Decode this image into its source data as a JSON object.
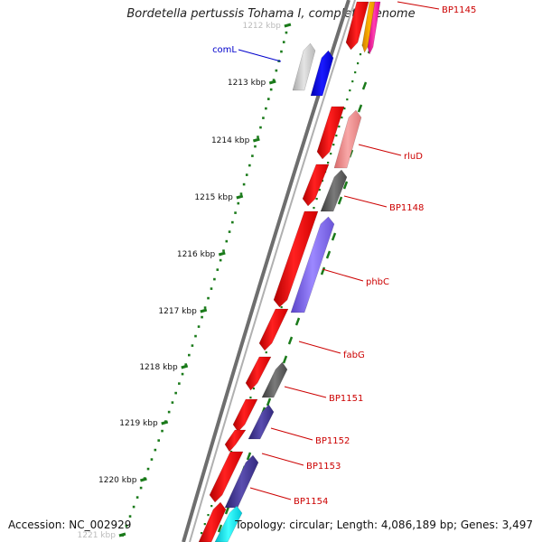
{
  "title": "Bordetella pertussis Tohama I, complete genome",
  "footer": {
    "accession_label": "Accession:",
    "accession": "NC_002929",
    "topology_label": "Topology:",
    "topology": "circular",
    "length_label": "Length:",
    "length": "4,086,189 bp",
    "genes_label": "Genes:",
    "genes": "3,497"
  },
  "ruler": {
    "color": "#1a7a1a",
    "ticks": [
      {
        "label": "1212 kbp",
        "faded": true
      },
      {
        "label": "1213 kbp"
      },
      {
        "label": "1214 kbp"
      },
      {
        "label": "1215 kbp"
      },
      {
        "label": "1216 kbp"
      },
      {
        "label": "1217 kbp"
      },
      {
        "label": "1218 kbp"
      },
      {
        "label": "1219 kbp"
      },
      {
        "label": "1220 kbp"
      },
      {
        "label": "1221 kbp",
        "faded": true
      }
    ]
  },
  "colors": {
    "backbone": "#7a7a7a",
    "forward_cds": "#ff0000",
    "label_red": "#cc0000",
    "label_blue": "#0000cc"
  },
  "gene_labels": [
    {
      "text": "comL",
      "color": "blue"
    },
    {
      "text": "BP1145",
      "color": "red"
    },
    {
      "text": "rluD",
      "color": "red"
    },
    {
      "text": "BP1148",
      "color": "red"
    },
    {
      "text": "phbC",
      "color": "red"
    },
    {
      "text": "fabG",
      "color": "red"
    },
    {
      "text": "BP1151",
      "color": "red"
    },
    {
      "text": "BP1152",
      "color": "red"
    },
    {
      "text": "BP1153",
      "color": "red"
    },
    {
      "text": "BP1154",
      "color": "red"
    }
  ]
}
